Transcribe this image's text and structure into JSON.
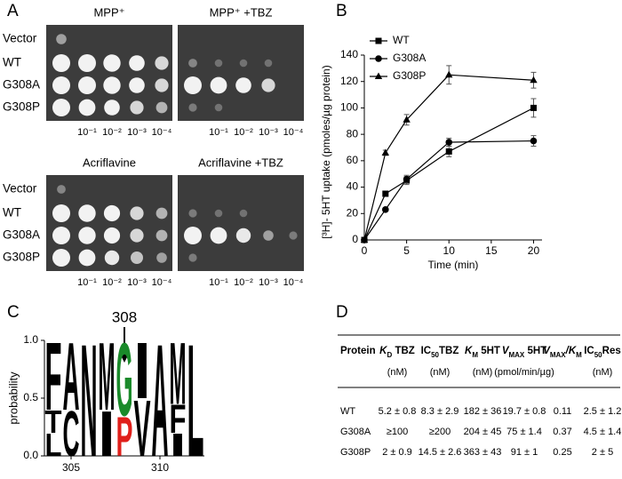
{
  "spot_assay": {
    "panel_label": "A",
    "row_labels": [
      "Vector",
      "WT",
      "G308A",
      "G308P"
    ],
    "dilutions": [
      "10⁻¹",
      "10⁻²",
      "10⁻³",
      "10⁻⁴"
    ],
    "plates": [
      {
        "title": "MPP⁺"
      },
      {
        "title": "MPP⁺ +TBZ"
      },
      {
        "title": "Acriflavine"
      },
      {
        "title": "Acriflavine +TBZ"
      }
    ]
  },
  "chart_data": [
    {
      "type": "line",
      "panel_label": "B",
      "x_label": "Time (min)",
      "y_label": "[³H]- 5HT uptake (pmoles/µg protein)",
      "x": [
        0,
        2.5,
        5,
        10,
        20
      ],
      "xlim": [
        0,
        21
      ],
      "xticks": [
        0,
        5,
        10,
        15,
        20
      ],
      "ylim": [
        0,
        140
      ],
      "yticks": [
        0,
        20,
        40,
        60,
        80,
        100,
        120,
        140
      ],
      "legend": "upper left",
      "series": [
        {
          "name": "WT",
          "color": "#000000",
          "marker": "square",
          "values": [
            0,
            35,
            45,
            67,
            100
          ],
          "errors": [
            0,
            1,
            3,
            4,
            7
          ]
        },
        {
          "name": "G308A",
          "color": "#000000",
          "marker": "circle",
          "values": [
            0,
            23,
            46,
            74,
            75
          ],
          "errors": [
            0,
            1,
            3,
            3,
            4
          ]
        },
        {
          "name": "G308P",
          "color": "#000000",
          "marker": "triangle",
          "values": [
            0,
            66,
            91,
            125,
            121
          ],
          "errors": [
            0,
            2,
            4,
            7,
            6
          ]
        }
      ]
    },
    {
      "type": "sequence_logo",
      "panel_label": "C",
      "y_label": "probability",
      "annotation": {
        "text": "308",
        "x": 308
      },
      "x": [
        304,
        305,
        306,
        307,
        308,
        309,
        310,
        311,
        312
      ],
      "xlim": [
        303.5,
        312.5
      ],
      "xticks": [
        305,
        310
      ],
      "ylim": [
        0,
        1
      ],
      "yticks": [
        {
          "value": 0,
          "label": "0.0"
        },
        {
          "value": 0.5,
          "label": "0.5"
        },
        {
          "value": 1,
          "label": "1.0"
        }
      ],
      "default_color": "#000000",
      "letter_colors": {
        "G": "#1a8a2a",
        "P": "#e0201b"
      },
      "stacks": [
        [
          {
            "letter": "F",
            "value": 0.6
          },
          {
            "letter": "T",
            "value": 0.2
          },
          {
            "letter": "L",
            "value": 0.2
          }
        ],
        [
          {
            "letter": "A",
            "value": 0.6
          },
          {
            "letter": "C",
            "value": 0.4
          }
        ],
        [
          {
            "letter": "N",
            "value": 1.0
          }
        ],
        [
          {
            "letter": "M",
            "value": 0.6
          },
          {
            "letter": "I",
            "value": 0.4
          }
        ],
        [
          {
            "letter": "G",
            "value": 0.65
          },
          {
            "letter": "P",
            "value": 0.35
          }
        ],
        [
          {
            "letter": "I",
            "value": 0.5
          },
          {
            "letter": "V",
            "value": 0.5
          }
        ],
        [
          {
            "letter": "A",
            "value": 1.0
          }
        ],
        [
          {
            "letter": "M",
            "value": 0.55
          },
          {
            "letter": "F",
            "value": 0.25
          },
          {
            "letter": "I",
            "value": 0.2
          }
        ],
        [
          {
            "letter": "L",
            "value": 1.0
          }
        ]
      ]
    }
  ],
  "table": {
    "panel_label": "D",
    "headers": [
      [
        "Protein"
      ],
      [
        "K",
        "D",
        " TBZ"
      ],
      [
        "IC",
        "50",
        "TBZ"
      ],
      [
        "K",
        "M",
        " 5HT"
      ],
      [
        "V",
        "MAX",
        " 5HT"
      ],
      [
        "V",
        "MAX",
        "/K",
        "M"
      ],
      [
        "IC",
        "50",
        "Res"
      ]
    ],
    "units": [
      null,
      "(nM)",
      "(nM)",
      "(nM)",
      "(pmol/min/µg)",
      null,
      "(nM)"
    ],
    "rows": [
      [
        "WT",
        "5.2 ± 0.8",
        "8.3 ± 2.9",
        "182 ± 36",
        "19.7 ± 0.8",
        "0.11",
        "2.5 ± 1.2"
      ],
      [
        "G308A",
        "≥100",
        "≥200",
        "204 ± 45",
        "75 ± 1.4",
        "0.37",
        "4.5 ± 1.4"
      ],
      [
        "G308P",
        "2 ± 0.9",
        "14.5 ± 2.6",
        "363 ± 43",
        "91 ± 1",
        "0.25",
        "2 ± 5"
      ]
    ]
  }
}
